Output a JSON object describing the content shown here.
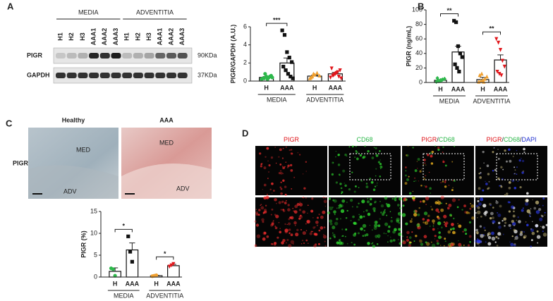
{
  "panel_labels": [
    "A",
    "B",
    "C",
    "D"
  ],
  "blot": {
    "groups": [
      "MEDIA",
      "ADVENTITIA"
    ],
    "lanes": [
      "H1",
      "H2",
      "H3",
      "AAA1",
      "AAA2",
      "AAA3",
      "H1",
      "H2",
      "H3",
      "AAA1",
      "AAA2",
      "AAA3"
    ],
    "lane_colors": [
      "#2db84b",
      "#2db84b",
      "#2db84b",
      "#e0161b",
      "#e0161b",
      "#e0161b",
      "#2db84b",
      "#2db84b",
      "#2db84b",
      "#e0161b",
      "#e0161b",
      "#e0161b"
    ],
    "rows": [
      "PIGR",
      "GAPDH"
    ],
    "sizes": [
      "90KDa",
      "37KDa"
    ]
  },
  "histology": {
    "columns": [
      "Healthy",
      "AAA"
    ],
    "row": "PIGR",
    "regions": [
      "MED",
      "ADV"
    ]
  },
  "fluorescence": {
    "headers": [
      [
        {
          "text": "PIGR",
          "color": "#e0161b"
        }
      ],
      [
        {
          "text": "CD68",
          "color": "#2db84b"
        }
      ],
      [
        {
          "text": "PIGR",
          "color": "#e0161b"
        },
        {
          "text": "/",
          "color": "#222"
        },
        {
          "text": "CD68",
          "color": "#2db84b"
        }
      ],
      [
        {
          "text": "PIGR",
          "color": "#e0161b"
        },
        {
          "text": "/",
          "color": "#222"
        },
        {
          "text": "CD68",
          "color": "#2db84b"
        },
        {
          "text": "/",
          "color": "#222"
        },
        {
          "text": "DAPI",
          "color": "#2030d0"
        }
      ]
    ]
  },
  "chart_data": [
    {
      "type": "bar",
      "y_label": "PIGR/GAPDH (A.U.)",
      "categories": [
        "H",
        "AAA",
        "H",
        "AAA"
      ],
      "groups": [
        "MEDIA",
        "ADVENTITIA"
      ],
      "values": [
        0.4,
        2.0,
        0.55,
        0.8
      ],
      "errors": [
        0.1,
        0.55,
        0.1,
        0.15
      ],
      "colors": [
        "#2db84b",
        "#111111",
        "#f0a030",
        "#e0161b"
      ],
      "markers": [
        "circle",
        "square",
        "triangle",
        "triangle-down"
      ],
      "points": [
        [
          0.2,
          0.3,
          0.5,
          0.4,
          0.6,
          0.3,
          0.8,
          0.2,
          0.5,
          0.4
        ],
        [
          5.6,
          5.1,
          3.2,
          2.6,
          2.1,
          1.6,
          1.2,
          0.8,
          0.5,
          0.3
        ],
        [
          0.3,
          0.5,
          0.7,
          0.9,
          0.6,
          0.4,
          0.8
        ],
        [
          0.4,
          0.6,
          0.8,
          1.0,
          1.2,
          1.4,
          0.7,
          0.9,
          0.5,
          0.3
        ]
      ],
      "significance": [
        "***",
        null
      ],
      "ylim": [
        0,
        6
      ],
      "yticks": [
        0,
        2,
        4,
        6
      ]
    },
    {
      "type": "bar",
      "y_label": "PIGR (ng/mL)",
      "categories": [
        "H",
        "AAA",
        "H",
        "AAA"
      ],
      "groups": [
        "MEDIA",
        "ADVENTITIA"
      ],
      "values": [
        3,
        42,
        4,
        31
      ],
      "errors": [
        1,
        8,
        3,
        7
      ],
      "colors": [
        "#2db84b",
        "#111111",
        "#f0a030",
        "#e0161b"
      ],
      "markers": [
        "diamond",
        "square",
        "triangle",
        "triangle-down"
      ],
      "points": [
        [
          1,
          2,
          3,
          4,
          5,
          6,
          2,
          3
        ],
        [
          85,
          83,
          50,
          40,
          35,
          25,
          20,
          15
        ],
        [
          1,
          2,
          3,
          5,
          8,
          10,
          12,
          1
        ],
        [
          60,
          55,
          45,
          30,
          22,
          15,
          12,
          10
        ]
      ],
      "significance": [
        "**",
        "**"
      ],
      "ylim": [
        0,
        100
      ],
      "yticks": [
        0,
        20,
        40,
        60,
        80,
        100
      ]
    },
    {
      "type": "bar",
      "y_label": "PIGR (%)",
      "categories": [
        "H",
        "AAA",
        "H",
        "AAA"
      ],
      "groups": [
        "MEDIA",
        "ADVENTITIA"
      ],
      "values": [
        1.3,
        6.2,
        0.3,
        2.6
      ],
      "errors": [
        0.8,
        1.6,
        0.1,
        0.3
      ],
      "colors": [
        "#2db84b",
        "#111111",
        "#f0a030",
        "#e0161b"
      ],
      "markers": [
        "circle",
        "square",
        "circle",
        "triangle-down"
      ],
      "points": [
        [
          2,
          1.8,
          0.3
        ],
        [
          9.3,
          5.8,
          3.5
        ],
        [
          0.2,
          0.3,
          0.4
        ],
        [
          2.4,
          2.7,
          3
        ]
      ],
      "significance": [
        "*",
        "*"
      ],
      "ylim": [
        0,
        15
      ],
      "yticks": [
        0,
        5,
        10,
        15
      ]
    }
  ]
}
